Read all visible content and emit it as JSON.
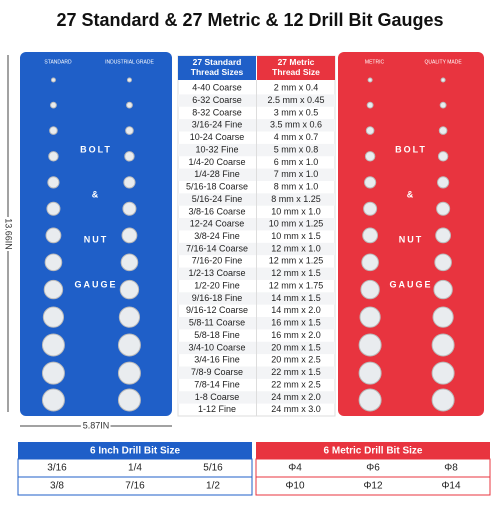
{
  "header": {
    "title": "27 Standard & 27 Metric & 12 Drill Bit Gauges"
  },
  "standard_gauge": {
    "labels": [
      "STANDARD",
      "INDUSTRIAL GRADE"
    ],
    "brand": [
      "BOLT",
      "&",
      "NUT",
      "GAUGE"
    ],
    "height": "13.66IN",
    "width": "5.87IN"
  },
  "metric_gauge": {
    "labels": [
      "METRIC",
      "QUALITY MADE"
    ],
    "brand": [
      "BOLT",
      "&",
      "NUT",
      "GAUGE"
    ]
  },
  "thread_table": {
    "headers": [
      "27 Standard Thread Sizes",
      "27 Metric Thread Size"
    ],
    "rows": [
      [
        "4-40 Coarse",
        "2 mm x 0.4"
      ],
      [
        "6-32 Coarse",
        "2.5 mm x 0.45"
      ],
      [
        "8-32 Coarse",
        "3 mm x 0.5"
      ],
      [
        "3/16-24 Fine",
        "3.5 mm x 0.6"
      ],
      [
        "10-24 Coarse",
        "4 mm x 0.7"
      ],
      [
        "10-32 Fine",
        "5 mm x 0.8"
      ],
      [
        "1/4-20 Coarse",
        "6 mm x 1.0"
      ],
      [
        "1/4-28 Fine",
        "7 mm x 1.0"
      ],
      [
        "5/16-18 Coarse",
        "8 mm x 1.0"
      ],
      [
        "5/16-24 Fine",
        "8 mm x 1.25"
      ],
      [
        "3/8-16 Coarse",
        "10 mm x 1.0"
      ],
      [
        "12-24 Coarse",
        "10 mm x 1.25"
      ],
      [
        "3/8-24 Fine",
        "10 mm x 1.5"
      ],
      [
        "7/16-14 Coarse",
        "12 mm x 1.0"
      ],
      [
        "7/16-20 Fine",
        "12 mm x 1.25"
      ],
      [
        "1/2-13 Coarse",
        "12 mm x 1.5"
      ],
      [
        "1/2-20 Fine",
        "12 mm x 1.75"
      ],
      [
        "9/16-18 Fine",
        "14 mm x 1.5"
      ],
      [
        "9/16-12 Coarse",
        "14 mm x 2.0"
      ],
      [
        "5/8-11 Coarse",
        "16 mm x 1.5"
      ],
      [
        "5/8-18 Fine",
        "16 mm x 2.0"
      ],
      [
        "3/4-10 Coarse",
        "20 mm x 1.5"
      ],
      [
        "3/4-16 Fine",
        "20 mm x 2.5"
      ],
      [
        "7/8-9 Coarse",
        "22 mm x 1.5"
      ],
      [
        "7/8-14 Fine",
        "22 mm x 2.5"
      ],
      [
        "1-8 Coarse",
        "24 mm x 2.0"
      ],
      [
        "1-12 Fine",
        "24 mm x 3.0"
      ]
    ]
  },
  "drill_table": {
    "inch": {
      "title": "6 Inch Drill Bit Size",
      "rows": [
        [
          "3/16",
          "1/4",
          "5/16"
        ],
        [
          "3/8",
          "7/16",
          "1/2"
        ]
      ]
    },
    "metric": {
      "title": "6 Metric Drill Bit Size",
      "rows": [
        [
          "Φ4",
          "Φ6",
          "Φ8"
        ],
        [
          "Φ10",
          "Φ12",
          "Φ14"
        ]
      ]
    }
  }
}
